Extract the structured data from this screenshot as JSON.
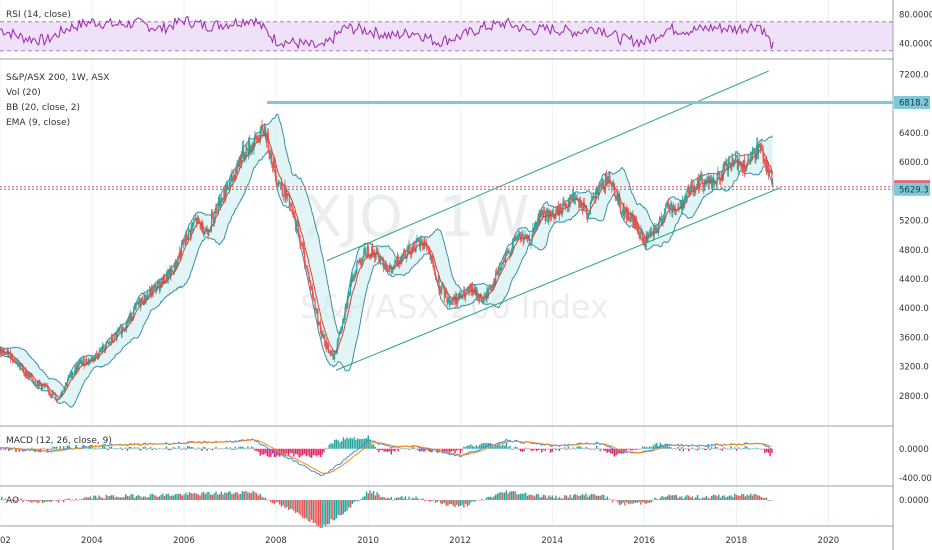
{
  "panels": {
    "rsi": {
      "label": "RSI (14, close)",
      "ticks": [
        "80.0000",
        "40.0000"
      ]
    },
    "main": {
      "title": "S&P/ASX 200, 1W, ASX",
      "indicators": [
        "Vol (20)",
        "BB (20, close, 2)",
        "EMA (9, close)"
      ],
      "watermark_symbol": "XJO, 1W",
      "watermark_name": "S&P/ASX 200 Index",
      "price_ticks": [
        "7200.0",
        "6400.0",
        "6000.0",
        "5200.0",
        "4800.0",
        "4400.0",
        "4000.0",
        "3600.0",
        "3200.0",
        "2800.0"
      ],
      "tags": [
        {
          "text": "6818.2",
          "color": "#7ec8d8",
          "text_color": "#1b3a44"
        },
        {
          "text": "5664.1",
          "color": "#ef5c6e",
          "text_color": "#ffffff"
        },
        {
          "text": "5629.3",
          "color": "#7ec8d8",
          "text_color": "#1b3a44"
        }
      ]
    },
    "macd": {
      "label": "MACD (12, 26, close, 9)",
      "ticks": [
        "0.0000",
        "-400.0000"
      ]
    },
    "ao": {
      "label": "AO",
      "ticks": [
        "0.0000"
      ]
    }
  },
  "x_axis": {
    "labels": [
      "02",
      "2004",
      "2006",
      "2008",
      "2010",
      "2012",
      "2014",
      "2016",
      "2018",
      "2020"
    ]
  },
  "colors": {
    "up": "#26a69a",
    "down": "#ef5350",
    "bb": "#3b8fa6",
    "bb_fill": "#cfeff0",
    "ema": "#d3453c",
    "rsi": "#9c27b0",
    "rsi_band": "#efe1f7",
    "channel": "#2aa57e",
    "hline": "#7ec8d8",
    "macd": "#3a8ee6",
    "signal": "#f08c1e",
    "grid": "#eef0f3"
  },
  "chart_data": [
    {
      "type": "line",
      "name": "RSI (14, close)",
      "x": [
        2002.0,
        2002.5,
        2003.0,
        2003.5,
        2004.0,
        2004.5,
        2005.0,
        2005.5,
        2006.0,
        2006.5,
        2007.0,
        2007.5,
        2008.0,
        2008.5,
        2009.0,
        2009.5,
        2010.0,
        2010.5,
        2011.0,
        2011.5,
        2012.0,
        2012.5,
        2013.0,
        2013.5,
        2014.0,
        2014.5,
        2015.0,
        2015.5,
        2016.0,
        2016.5,
        2017.0,
        2017.5,
        2018.0,
        2018.5,
        2018.8
      ],
      "values": [
        60,
        48,
        44,
        62,
        70,
        66,
        68,
        60,
        72,
        64,
        68,
        74,
        44,
        40,
        34,
        62,
        58,
        50,
        56,
        42,
        50,
        62,
        68,
        58,
        60,
        56,
        62,
        46,
        42,
        60,
        58,
        62,
        60,
        66,
        35
      ],
      "ylim": [
        20,
        100
      ]
    },
    {
      "type": "line",
      "series": [
        {
          "name": "S&P/ASX 200, 1W, ASX",
          "role": "close"
        }
      ],
      "x": [
        2002.0,
        2002.25,
        2002.5,
        2002.75,
        2003.0,
        2003.25,
        2003.5,
        2003.75,
        2004.0,
        2004.25,
        2004.5,
        2004.75,
        2005.0,
        2005.25,
        2005.5,
        2005.75,
        2006.0,
        2006.25,
        2006.5,
        2006.75,
        2007.0,
        2007.25,
        2007.5,
        2007.75,
        2008.0,
        2008.25,
        2008.5,
        2008.75,
        2009.0,
        2009.25,
        2009.5,
        2009.75,
        2010.0,
        2010.25,
        2010.5,
        2010.75,
        2011.0,
        2011.25,
        2011.5,
        2011.75,
        2012.0,
        2012.25,
        2012.5,
        2012.75,
        2013.0,
        2013.25,
        2013.5,
        2013.75,
        2014.0,
        2014.25,
        2014.5,
        2014.75,
        2015.0,
        2015.25,
        2015.5,
        2015.75,
        2016.0,
        2016.25,
        2016.5,
        2016.75,
        2017.0,
        2017.25,
        2017.5,
        2017.75,
        2018.0,
        2018.25,
        2018.5,
        2018.8
      ],
      "values": [
        3400,
        3350,
        3150,
        3000,
        2900,
        2750,
        3050,
        3250,
        3300,
        3450,
        3600,
        3800,
        4050,
        4200,
        4350,
        4500,
        4900,
        5200,
        5050,
        5450,
        5700,
        6100,
        6250,
        6450,
        5800,
        5500,
        5000,
        4300,
        3600,
        3300,
        4000,
        4600,
        4800,
        4700,
        4500,
        4750,
        4850,
        4900,
        4350,
        4100,
        4150,
        4250,
        4100,
        4400,
        4700,
        5000,
        4900,
        5300,
        5250,
        5400,
        5550,
        5300,
        5600,
        5800,
        5350,
        5200,
        4900,
        5050,
        5400,
        5350,
        5650,
        5750,
        5700,
        5900,
        6000,
        5950,
        6250,
        5664.1
      ],
      "ylim": [
        2400,
        7400
      ]
    },
    {
      "type": "line",
      "name": "MACD (12, 26, close, 9)",
      "x": [
        2002.0,
        2003.0,
        2004.0,
        2005.0,
        2006.0,
        2007.0,
        2007.5,
        2008.0,
        2008.5,
        2009.0,
        2009.5,
        2010.0,
        2010.5,
        2011.0,
        2012.0,
        2013.0,
        2014.0,
        2015.0,
        2015.5,
        2016.0,
        2016.5,
        2017.0,
        2018.0,
        2018.5,
        2018.8
      ],
      "values": [
        20,
        -40,
        40,
        60,
        80,
        100,
        120,
        -50,
        -200,
        -380,
        -150,
        120,
        20,
        40,
        -100,
        120,
        40,
        80,
        -60,
        -40,
        60,
        40,
        60,
        80,
        -20
      ],
      "ylim": [
        -500,
        300
      ]
    }
  ]
}
